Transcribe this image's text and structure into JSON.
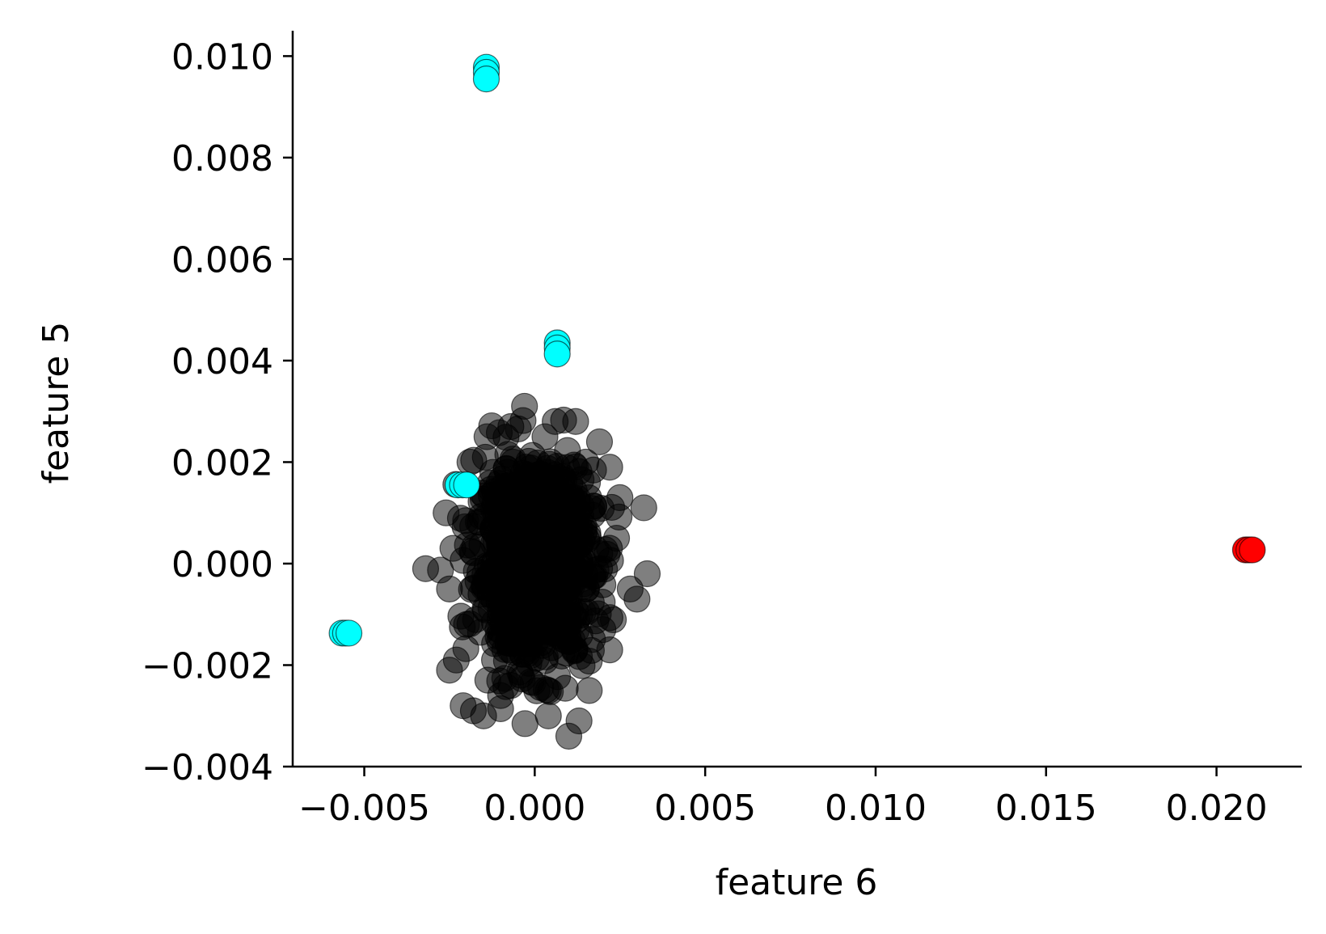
{
  "chart_data": {
    "type": "scatter",
    "title": "",
    "xlabel": "feature 6",
    "ylabel": "feature 5",
    "xlim": [
      -0.0071,
      0.0225
    ],
    "ylim": [
      -0.004,
      0.0105
    ],
    "x_ticks": [
      -0.005,
      0.0,
      0.005,
      0.01,
      0.015,
      0.02
    ],
    "x_tick_labels": [
      "−0.005",
      "0.000",
      "0.005",
      "0.010",
      "0.015",
      "0.020"
    ],
    "y_ticks": [
      -0.004,
      -0.002,
      0.0,
      0.002,
      0.004,
      0.006,
      0.008,
      0.01
    ],
    "y_tick_labels": [
      "−0.004",
      "−0.002",
      "0.000",
      "0.002",
      "0.004",
      "0.006",
      "0.008",
      "0.010"
    ],
    "grid": false,
    "legend": "none",
    "series": [
      {
        "color": "#000000",
        "opacity": 0.5,
        "center": [
          0.0,
          0.0
        ],
        "spread": [
          0.00085,
          0.00095
        ],
        "count": 900,
        "points": [
          [
            -0.0032,
            -0.0001
          ],
          [
            -0.0026,
            0.001
          ],
          [
            -0.0025,
            -0.0021
          ],
          [
            -0.0023,
            -0.0019
          ],
          [
            -0.0021,
            -0.0028
          ],
          [
            -0.0018,
            -0.0029
          ],
          [
            -0.0015,
            -0.003
          ],
          [
            -0.0019,
            0.002
          ],
          [
            -0.0014,
            0.0025
          ],
          [
            -0.0007,
            0.0027
          ],
          [
            0.0003,
            0.0025
          ],
          [
            0.0006,
            0.0028
          ],
          [
            -0.0003,
            0.0031
          ],
          [
            0.0012,
            0.0028
          ],
          [
            0.0015,
            0.002
          ],
          [
            0.0019,
            0.0024
          ],
          [
            0.0022,
            0.0019
          ],
          [
            0.0025,
            0.0013
          ],
          [
            0.0032,
            0.0011
          ],
          [
            0.0033,
            -0.0002
          ],
          [
            0.003,
            -0.0007
          ],
          [
            0.0028,
            -0.0005
          ],
          [
            0.0022,
            -0.0017
          ],
          [
            0.0016,
            -0.0025
          ],
          [
            0.0013,
            -0.0031
          ],
          [
            0.001,
            -0.0034
          ],
          [
            0.0004,
            -0.0025
          ],
          [
            0.0004,
            -0.003
          ],
          [
            -0.0004,
            -0.0022
          ],
          [
            -0.001,
            -0.0026
          ],
          [
            -0.0007,
            -0.0024
          ],
          [
            -0.0025,
            -0.0005
          ],
          [
            -0.0024,
            0.0003
          ],
          [
            0.0024,
            0.0005
          ],
          [
            -0.002,
            -0.0012
          ],
          [
            0.002,
            -0.0013
          ]
        ]
      },
      {
        "color": "#00ffff",
        "points": [
          [
            -0.00142,
            0.00978
          ],
          [
            -0.00142,
            0.00968
          ],
          [
            -0.00142,
            0.00955
          ],
          [
            0.00066,
            0.00435
          ],
          [
            0.00066,
            0.00425
          ],
          [
            0.00066,
            0.00413
          ],
          [
            -0.00225,
            0.00155
          ],
          [
            -0.00212,
            0.00155
          ],
          [
            -0.002,
            0.00155
          ],
          [
            -0.00565,
            -0.00137
          ],
          [
            -0.00555,
            -0.00137
          ],
          [
            -0.00545,
            -0.00137
          ]
        ]
      },
      {
        "color": "#ff0000",
        "points": [
          [
            0.02085,
            0.00027
          ],
          [
            0.02095,
            0.00027
          ],
          [
            0.02105,
            0.00027
          ]
        ]
      }
    ]
  }
}
